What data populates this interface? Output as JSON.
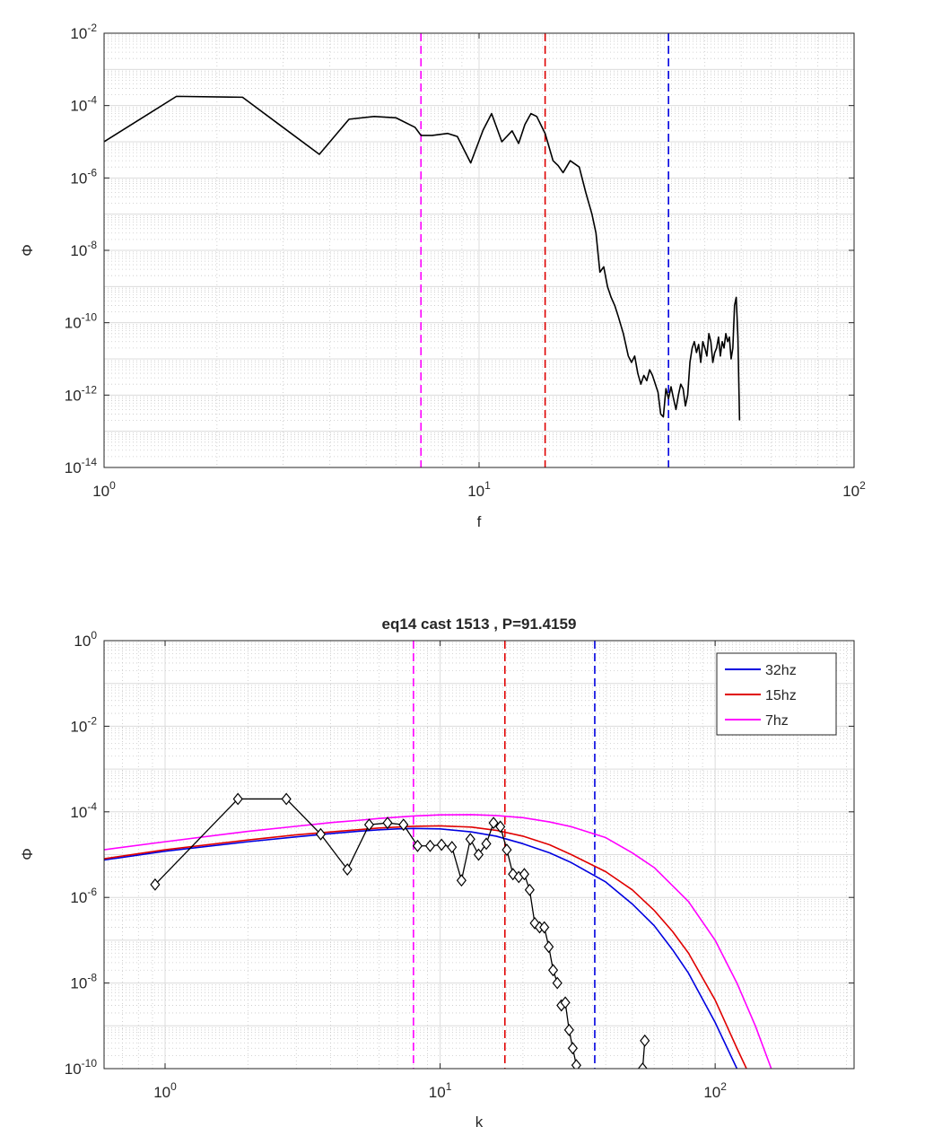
{
  "chart_data": [
    {
      "type": "line",
      "title": "",
      "xlabel": "f",
      "ylabel": "Φ",
      "xscale": "log",
      "yscale": "log",
      "xlim": [
        1,
        100
      ],
      "ylim": [
        1e-14,
        0.01
      ],
      "grid": true,
      "minor_grid": true,
      "x_ticks": [
        {
          "base": "10",
          "exp": "0",
          "value": 1
        },
        {
          "base": "10",
          "exp": "1",
          "value": 10
        },
        {
          "base": "10",
          "exp": "2",
          "value": 100
        }
      ],
      "y_ticks": [
        {
          "base": "10",
          "exp": "-2",
          "value": 0.01
        },
        {
          "base": "10",
          "exp": "-4",
          "value": 0.0001
        },
        {
          "base": "10",
          "exp": "-6",
          "value": 1e-06
        },
        {
          "base": "10",
          "exp": "-8",
          "value": 1e-08
        },
        {
          "base": "10",
          "exp": "-10",
          "value": 1e-10
        },
        {
          "base": "10",
          "exp": "-12",
          "value": 1e-12
        },
        {
          "base": "10",
          "exp": "-14",
          "value": 1e-14
        }
      ],
      "vlines": [
        {
          "x": 7,
          "color": "#ff00ff"
        },
        {
          "x": 15,
          "color": "#e00000"
        },
        {
          "x": 32,
          "color": "#0000e0"
        }
      ],
      "series": [
        {
          "color": "#000000",
          "x": [
            1.0,
            1.56,
            2.34,
            3.0,
            3.75,
            4.5,
            5.25,
            6.0,
            6.75,
            7.0,
            7.5,
            8.25,
            8.75,
            9.5,
            10.25,
            10.8,
            11.5,
            12.25,
            12.75,
            13.25,
            13.75,
            14.25,
            15.0,
            15.75,
            16.25,
            16.75,
            17.5,
            18.5,
            19.25,
            20.0,
            20.5,
            21.0,
            21.5,
            22.0,
            22.5,
            23.0,
            23.5,
            24.25,
            25.0,
            25.5,
            26.0,
            26.5,
            27.0,
            27.5,
            28.0,
            28.5,
            29.0,
            30.0,
            30.5,
            31.0,
            31.5,
            32.0,
            32.5,
            33.0,
            33.5,
            34.0,
            34.5,
            35.0,
            35.5,
            36.0,
            36.5,
            37.0,
            37.5,
            38.0,
            38.5,
            39.0,
            39.5,
            40.0,
            40.5,
            41.0,
            41.5,
            42.0,
            42.5,
            43.0,
            43.5,
            44.0,
            44.5,
            45.0,
            45.5,
            46.0,
            46.5,
            47.0,
            47.5,
            48.0,
            48.5,
            49.0,
            49.5
          ],
          "y": [
            1e-05,
            0.00018,
            0.00017,
            2.5e-05,
            4.5e-06,
            4.2e-05,
            5e-05,
            4.6e-05,
            2.5e-05,
            1.5e-05,
            1.5e-05,
            1.7e-05,
            1.4e-05,
            2.6e-06,
            2.1e-05,
            6e-05,
            1e-05,
            2e-05,
            9e-06,
            3e-05,
            6e-05,
            5e-05,
            1.7e-05,
            3e-06,
            2.2e-06,
            1.4e-06,
            3e-06,
            2e-06,
            4e-07,
            1e-07,
            3e-08,
            2.5e-09,
            3.5e-09,
            1e-09,
            5e-10,
            3e-10,
            1.5e-10,
            5e-11,
            1.2e-11,
            8e-12,
            1.2e-11,
            4e-12,
            2e-12,
            3.5e-12,
            2.5e-12,
            5e-12,
            3.5e-12,
            1.2e-12,
            3e-13,
            2.5e-13,
            1.5e-12,
            8e-13,
            1.7e-12,
            8e-13,
            4e-13,
            1e-12,
            2e-12,
            1.5e-12,
            5e-13,
            1e-12,
            8e-12,
            2e-11,
            3e-11,
            1.5e-11,
            2.5e-11,
            8e-12,
            3e-11,
            2e-11,
            1.2e-11,
            5e-11,
            3e-11,
            8e-12,
            1.5e-11,
            2e-11,
            4e-11,
            1.2e-11,
            3e-11,
            2e-11,
            5e-11,
            3e-11,
            4e-11,
            1e-11,
            2e-11,
            3e-10,
            5e-10,
            4e-11,
            2e-13
          ]
        }
      ]
    },
    {
      "type": "line",
      "title": "eq14 cast 1513 , P=91.4159",
      "xlabel": "k",
      "ylabel": "Φ",
      "xscale": "log",
      "yscale": "log",
      "xlim": [
        0.6,
        320
      ],
      "ylim": [
        1e-10,
        1
      ],
      "grid": true,
      "minor_grid": true,
      "legend": "top-right",
      "x_ticks": [
        {
          "base": "10",
          "exp": "0",
          "value": 1
        },
        {
          "base": "10",
          "exp": "1",
          "value": 10
        },
        {
          "base": "10",
          "exp": "2",
          "value": 100
        }
      ],
      "y_ticks": [
        {
          "base": "10",
          "exp": "0",
          "value": 1
        },
        {
          "base": "10",
          "exp": "-2",
          "value": 0.01
        },
        {
          "base": "10",
          "exp": "-4",
          "value": 0.0001
        },
        {
          "base": "10",
          "exp": "-6",
          "value": 1e-06
        },
        {
          "base": "10",
          "exp": "-8",
          "value": 1e-08
        },
        {
          "base": "10",
          "exp": "-10",
          "value": 1e-10
        }
      ],
      "vlines": [
        {
          "x": 8.0,
          "color": "#ff00ff"
        },
        {
          "x": 17.2,
          "color": "#e00000"
        },
        {
          "x": 36.5,
          "color": "#0000e0"
        }
      ],
      "series": [
        {
          "name": "32hz",
          "color": "#0000e0",
          "x": [
            0.6,
            1,
            2,
            3,
            4,
            5,
            6,
            7,
            8,
            10,
            13,
            16,
            20,
            25,
            30,
            40,
            50,
            60,
            70,
            80,
            100,
            120
          ],
          "y": [
            7.5e-06,
            1.2e-05,
            2e-05,
            2.6e-05,
            3.1e-05,
            3.5e-05,
            3.8e-05,
            4e-05,
            4.1e-05,
            4e-05,
            3.4e-05,
            2.7e-05,
            1.8e-05,
            1.1e-05,
            6.5e-06,
            2.3e-06,
            7e-07,
            2.2e-07,
            6e-08,
            1.7e-08,
            1.2e-09,
            1e-10
          ]
        },
        {
          "name": "15hz",
          "color": "#e00000",
          "x": [
            0.6,
            1,
            2,
            3,
            4,
            5,
            6,
            8,
            10,
            13,
            16,
            20,
            25,
            30,
            40,
            50,
            60,
            70,
            80,
            100,
            120,
            130
          ],
          "y": [
            8e-06,
            1.3e-05,
            2.2e-05,
            2.9e-05,
            3.4e-05,
            3.8e-05,
            4.2e-05,
            4.6e-05,
            4.7e-05,
            4.4e-05,
            3.7e-05,
            2.7e-05,
            1.7e-05,
            1e-05,
            4e-06,
            1.5e-06,
            5e-07,
            1.6e-07,
            5e-08,
            4e-09,
            3e-10,
            1e-10
          ]
        },
        {
          "name": "7hz",
          "color": "#ff00ff",
          "x": [
            0.6,
            1,
            2,
            3,
            4,
            5,
            6,
            8,
            10,
            13,
            16,
            20,
            25,
            30,
            40,
            50,
            60,
            80,
            100,
            120,
            140,
            160
          ],
          "y": [
            1.3e-05,
            2e-05,
            3.5e-05,
            4.6e-05,
            5.6e-05,
            6.3e-05,
            7e-05,
            8e-05,
            8.5e-05,
            8.6e-05,
            8.2e-05,
            7.3e-05,
            5.8e-05,
            4.5e-05,
            2.5e-05,
            1.1e-05,
            5e-06,
            8e-07,
            1e-07,
            1e-08,
            1e-09,
            1e-10
          ]
        },
        {
          "color": "#000000",
          "marker": "diamond",
          "x": [
            0.92,
            1.84,
            2.76,
            3.68,
            4.6,
            5.52,
            6.44,
            7.36,
            8.28,
            9.2,
            10.12,
            11.04,
            11.96,
            12.88,
            13.8,
            14.72,
            15.64,
            16.56,
            17.48,
            18.4,
            19.32,
            20.24,
            21.16,
            22.08,
            23.0,
            23.92,
            24.84,
            25.76,
            26.68
          ],
          "y": [
            2e-06,
            0.0002,
            0.0002,
            3e-05,
            4.5e-06,
            5e-05,
            5.5e-05,
            5e-05,
            1.6e-05,
            1.6e-05,
            1.7e-05,
            1.5e-05,
            2.5e-06,
            2.3e-05,
            1e-05,
            1.8e-05,
            5.5e-05,
            4.5e-05,
            1.3e-05,
            3.5e-06,
            3e-06,
            3.5e-06,
            1.5e-06,
            2.5e-07,
            2e-07,
            2e-07,
            7e-08,
            2e-08,
            1e-08
          ]
        },
        {
          "color": "#000000",
          "marker": "diamond",
          "x": [
            27.6,
            28.52,
            29.44,
            30.36,
            31.28
          ],
          "y": [
            3e-09,
            3.5e-09,
            8e-10,
            3e-10,
            1.2e-10
          ]
        },
        {
          "color": "#000000",
          "marker": "diamond",
          "x": [
            54.5,
            55.5
          ],
          "y": [
            1e-10,
            4.5e-10
          ]
        }
      ]
    }
  ]
}
